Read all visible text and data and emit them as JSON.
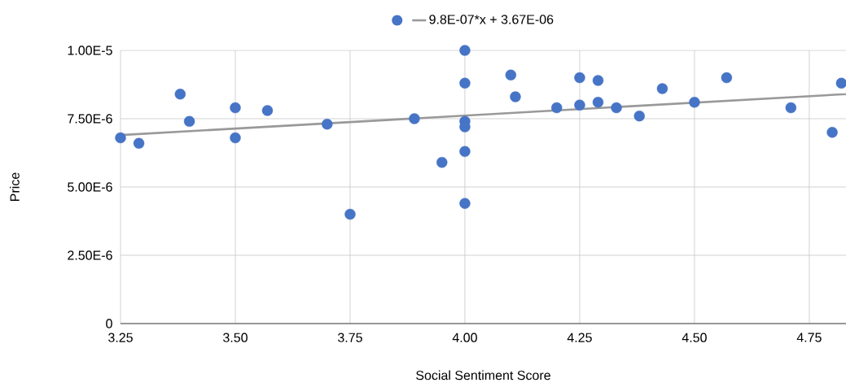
{
  "chart_data": {
    "type": "scatter",
    "xlabel": "Social Sentiment Score",
    "ylabel": "Price",
    "xlim": [
      3.25,
      4.83
    ],
    "ylim": [
      0,
      1e-05
    ],
    "xticks": [
      3.25,
      {
        "value": 3.5,
        "label": "3.50"
      },
      3.75,
      {
        "value": 4.0,
        "label": "4.00"
      },
      4.25,
      {
        "value": 4.5,
        "label": "4.50"
      },
      4.75
    ],
    "yticks": [
      0,
      {
        "value": 2.5e-06,
        "label": "2.50E-6"
      },
      {
        "value": 5e-06,
        "label": "5.00E-6"
      },
      {
        "value": 7.5e-06,
        "label": "7.50E-6"
      },
      {
        "value": 1e-05,
        "label": "1.00E-5"
      }
    ],
    "grid": true,
    "legend": "top",
    "marker": "circle",
    "series": [
      {
        "color": "#4674c6",
        "x": [
          3.25,
          3.29,
          3.38,
          3.4,
          3.5,
          3.5,
          3.57,
          3.7,
          3.75,
          3.89,
          3.95,
          4.0,
          4.0,
          4.0,
          4.0,
          4.0,
          4.0,
          4.1,
          4.11,
          4.2,
          4.25,
          4.25,
          4.29,
          4.29,
          4.33,
          4.38,
          4.43,
          4.5,
          4.57,
          4.71,
          4.8,
          4.82
        ],
        "values": [
          6.8e-06,
          6.6e-06,
          8.4e-06,
          7.4e-06,
          7.9e-06,
          6.8e-06,
          7.8e-06,
          7.3e-06,
          4e-06,
          7.5e-06,
          5.9e-06,
          1e-05,
          8.8e-06,
          7.4e-06,
          7.2e-06,
          6.3e-06,
          4.4e-06,
          9.1e-06,
          8.3e-06,
          7.9e-06,
          9e-06,
          8e-06,
          8.9e-06,
          8.1e-06,
          7.9e-06,
          7.6e-06,
          8.6e-06,
          8.1e-06,
          9e-06,
          7.9e-06,
          7e-06,
          8.8e-06
        ]
      },
      {
        "type": "line",
        "name": "9.8E-07*x + 3.67E-06",
        "color": "#999999",
        "marker": "none",
        "x": [
          3.25,
          4.83
        ],
        "values": [
          6.9e-06,
          8.4e-06
        ]
      }
    ]
  }
}
